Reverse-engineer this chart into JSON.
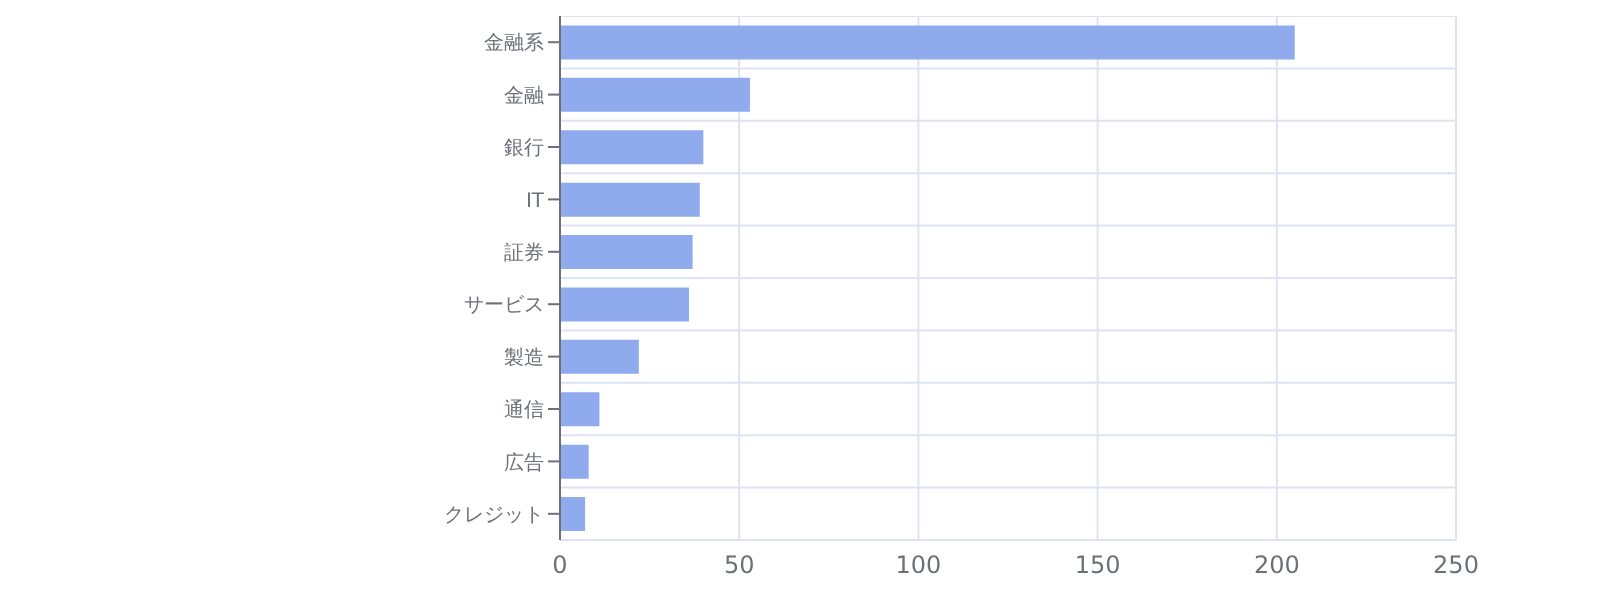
{
  "chart_data": {
    "type": "bar",
    "orientation": "horizontal",
    "categories": [
      "金融系",
      "金融",
      "銀行",
      "IT",
      "証券",
      "サービス",
      "製造",
      "通信",
      "広告",
      "クレジット"
    ],
    "values": [
      205,
      53,
      40,
      39,
      37,
      36,
      22,
      11,
      8,
      7
    ],
    "color": "#8fabee",
    "xlim": [
      0,
      250
    ],
    "xticks": [
      0,
      50,
      100,
      150,
      200,
      250
    ],
    "grid": true
  }
}
